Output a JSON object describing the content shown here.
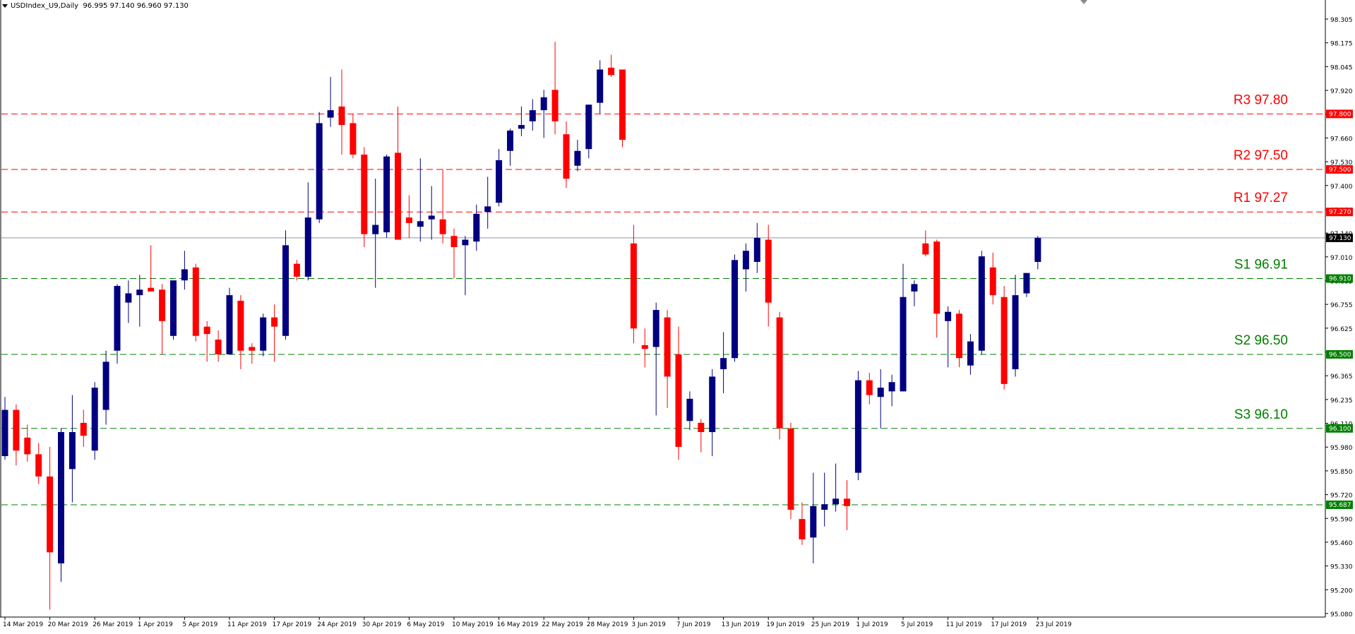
{
  "window": {
    "symbol": "USDIndex_U9,Daily",
    "ohlc": "96.995 97.140 96.960 97.130"
  },
  "colors": {
    "bull": "#000080",
    "bear": "#ff0000",
    "resistance": "#ff0000",
    "support": "#008000",
    "current_line": "#8899aa",
    "axis": "#000000"
  },
  "chart_data": {
    "type": "candlestick",
    "ylim": [
      95.08,
      98.37
    ],
    "y_ticks": [
      "98.305",
      "98.175",
      "98.045",
      "97.920",
      "97.790",
      "97.660",
      "97.530",
      "97.400",
      "97.270",
      "97.140",
      "97.010",
      "96.885",
      "96.755",
      "96.625",
      "96.495",
      "96.365",
      "96.235",
      "96.110",
      "95.980",
      "95.850",
      "95.720",
      "95.590",
      "95.460",
      "95.330",
      "95.200",
      "95.080"
    ],
    "x_labels": [
      {
        "i": 0,
        "t": "14 Mar 2019"
      },
      {
        "i": 4,
        "t": "20 Mar 2019"
      },
      {
        "i": 8,
        "t": "26 Mar 2019"
      },
      {
        "i": 12,
        "t": "1 Apr 2019"
      },
      {
        "i": 16,
        "t": "5 Apr 2019"
      },
      {
        "i": 20,
        "t": "11 Apr 2019"
      },
      {
        "i": 24,
        "t": "17 Apr 2019"
      },
      {
        "i": 28,
        "t": "24 Apr 2019"
      },
      {
        "i": 32,
        "t": "30 Apr 2019"
      },
      {
        "i": 36,
        "t": "6 May 2019"
      },
      {
        "i": 40,
        "t": "10 May 2019"
      },
      {
        "i": 44,
        "t": "16 May 2019"
      },
      {
        "i": 48,
        "t": "22 May 2019"
      },
      {
        "i": 52,
        "t": "28 May 2019"
      },
      {
        "i": 56,
        "t": "3 Jun 2019"
      },
      {
        "i": 60,
        "t": "7 Jun 2019"
      },
      {
        "i": 64,
        "t": "13 Jun 2019"
      },
      {
        "i": 68,
        "t": "19 Jun 2019"
      },
      {
        "i": 72,
        "t": "25 Jun 2019"
      },
      {
        "i": 76,
        "t": "1 Jul 2019"
      },
      {
        "i": 80,
        "t": "5 Jul 2019"
      },
      {
        "i": 84,
        "t": "11 Jul 2019"
      },
      {
        "i": 88,
        "t": "17 Jul 2019"
      },
      {
        "i": 92,
        "t": "23 Jul 2019"
      }
    ],
    "levels": [
      {
        "name": "R3",
        "label": "R3 97.80",
        "value": 97.8,
        "tag": "97.800",
        "kind": "resistance"
      },
      {
        "name": "R2",
        "label": "R2 97.50",
        "value": 97.5,
        "tag": "97.500",
        "kind": "resistance"
      },
      {
        "name": "R1",
        "label": "R1 97.27",
        "value": 97.27,
        "tag": "97.270",
        "kind": "resistance"
      },
      {
        "name": "S1",
        "label": "S1 96.91",
        "value": 96.91,
        "tag": "96.910",
        "kind": "support"
      },
      {
        "name": "S2",
        "label": "S2 96.50",
        "value": 96.5,
        "tag": "96.500",
        "kind": "support"
      },
      {
        "name": "S3",
        "label": "S3 96.10",
        "value": 96.1,
        "tag": "96.100",
        "kind": "support"
      },
      {
        "name": "",
        "label": "",
        "value": 95.687,
        "tag": "95.687",
        "kind": "support"
      }
    ],
    "current": {
      "value": 97.13,
      "tag": "97.130"
    },
    "candles": [
      {
        "o": 95.95,
        "h": 96.27,
        "l": 95.93,
        "c": 96.2
      },
      {
        "o": 96.2,
        "h": 96.23,
        "l": 95.9,
        "c": 95.98
      },
      {
        "o": 96.05,
        "h": 96.12,
        "l": 95.92,
        "c": 95.96
      },
      {
        "o": 95.96,
        "h": 96.02,
        "l": 95.8,
        "c": 95.84
      },
      {
        "o": 95.84,
        "h": 96.0,
        "l": 95.12,
        "c": 95.43
      },
      {
        "o": 95.37,
        "h": 96.1,
        "l": 95.27,
        "c": 96.08
      },
      {
        "o": 95.88,
        "h": 96.28,
        "l": 95.7,
        "c": 96.08
      },
      {
        "o": 96.13,
        "h": 96.2,
        "l": 96.0,
        "c": 96.06
      },
      {
        "o": 95.98,
        "h": 96.35,
        "l": 95.93,
        "c": 96.32
      },
      {
        "o": 96.2,
        "h": 96.52,
        "l": 96.12,
        "c": 96.46
      },
      {
        "o": 96.52,
        "h": 96.88,
        "l": 96.45,
        "c": 96.87
      },
      {
        "o": 96.78,
        "h": 96.9,
        "l": 96.67,
        "c": 96.83
      },
      {
        "o": 96.82,
        "h": 96.93,
        "l": 96.65,
        "c": 96.85
      },
      {
        "o": 96.86,
        "h": 97.09,
        "l": 96.84,
        "c": 96.84
      },
      {
        "o": 96.85,
        "h": 96.88,
        "l": 96.5,
        "c": 96.68
      },
      {
        "o": 96.6,
        "h": 96.9,
        "l": 96.58,
        "c": 96.9
      },
      {
        "o": 96.9,
        "h": 97.06,
        "l": 96.85,
        "c": 96.96
      },
      {
        "o": 96.97,
        "h": 96.99,
        "l": 96.57,
        "c": 96.6
      },
      {
        "o": 96.65,
        "h": 96.68,
        "l": 96.46,
        "c": 96.61
      },
      {
        "o": 96.58,
        "h": 96.63,
        "l": 96.46,
        "c": 96.5
      },
      {
        "o": 96.5,
        "h": 96.86,
        "l": 96.5,
        "c": 96.82
      },
      {
        "o": 96.79,
        "h": 96.82,
        "l": 96.42,
        "c": 96.52
      },
      {
        "o": 96.54,
        "h": 96.56,
        "l": 96.45,
        "c": 96.52
      },
      {
        "o": 96.52,
        "h": 96.72,
        "l": 96.49,
        "c": 96.7
      },
      {
        "o": 96.7,
        "h": 96.77,
        "l": 96.46,
        "c": 96.65
      },
      {
        "o": 96.6,
        "h": 97.17,
        "l": 96.58,
        "c": 97.09
      },
      {
        "o": 96.99,
        "h": 97.01,
        "l": 96.9,
        "c": 96.92
      },
      {
        "o": 96.92,
        "h": 97.43,
        "l": 96.9,
        "c": 97.24
      },
      {
        "o": 97.23,
        "h": 97.81,
        "l": 97.21,
        "c": 97.75
      },
      {
        "o": 97.78,
        "h": 98.0,
        "l": 97.73,
        "c": 97.82
      },
      {
        "o": 97.84,
        "h": 98.04,
        "l": 97.58,
        "c": 97.74
      },
      {
        "o": 97.75,
        "h": 97.8,
        "l": 97.56,
        "c": 97.58
      },
      {
        "o": 97.58,
        "h": 97.62,
        "l": 97.08,
        "c": 97.15
      },
      {
        "o": 97.15,
        "h": 97.45,
        "l": 96.86,
        "c": 97.2
      },
      {
        "o": 97.16,
        "h": 97.58,
        "l": 97.13,
        "c": 97.57
      },
      {
        "o": 97.59,
        "h": 97.84,
        "l": 97.12,
        "c": 97.12
      },
      {
        "o": 97.24,
        "h": 97.36,
        "l": 97.13,
        "c": 97.21
      },
      {
        "o": 97.19,
        "h": 97.56,
        "l": 97.11,
        "c": 97.22
      },
      {
        "o": 97.23,
        "h": 97.41,
        "l": 97.12,
        "c": 97.25
      },
      {
        "o": 97.23,
        "h": 97.5,
        "l": 97.1,
        "c": 97.15
      },
      {
        "o": 97.14,
        "h": 97.18,
        "l": 96.91,
        "c": 97.08
      },
      {
        "o": 97.09,
        "h": 97.14,
        "l": 96.82,
        "c": 97.12
      },
      {
        "o": 97.11,
        "h": 97.31,
        "l": 97.06,
        "c": 97.26
      },
      {
        "o": 97.27,
        "h": 97.46,
        "l": 97.18,
        "c": 97.3
      },
      {
        "o": 97.32,
        "h": 97.61,
        "l": 97.3,
        "c": 97.55
      },
      {
        "o": 97.6,
        "h": 97.72,
        "l": 97.52,
        "c": 97.71
      },
      {
        "o": 97.72,
        "h": 97.84,
        "l": 97.68,
        "c": 97.74
      },
      {
        "o": 97.76,
        "h": 97.88,
        "l": 97.71,
        "c": 97.82
      },
      {
        "o": 97.82,
        "h": 97.93,
        "l": 97.67,
        "c": 97.89
      },
      {
        "o": 97.93,
        "h": 98.19,
        "l": 97.69,
        "c": 97.76
      },
      {
        "o": 97.69,
        "h": 97.76,
        "l": 97.4,
        "c": 97.45
      },
      {
        "o": 97.52,
        "h": 97.66,
        "l": 97.49,
        "c": 97.6
      },
      {
        "o": 97.61,
        "h": 97.85,
        "l": 97.56,
        "c": 97.85
      },
      {
        "o": 97.86,
        "h": 98.09,
        "l": 97.8,
        "c": 98.04
      },
      {
        "o": 98.05,
        "h": 98.12,
        "l": 98.0,
        "c": 98.01
      },
      {
        "o": 98.04,
        "h": 98.04,
        "l": 97.62,
        "c": 97.66
      },
      {
        "o": 97.1,
        "h": 97.2,
        "l": 96.56,
        "c": 96.64
      },
      {
        "o": 96.55,
        "h": 96.64,
        "l": 96.43,
        "c": 96.53
      },
      {
        "o": 96.54,
        "h": 96.78,
        "l": 96.17,
        "c": 96.74
      },
      {
        "o": 96.7,
        "h": 96.74,
        "l": 96.21,
        "c": 96.38
      },
      {
        "o": 96.5,
        "h": 96.65,
        "l": 95.93,
        "c": 96.0
      },
      {
        "o": 96.14,
        "h": 96.3,
        "l": 96.09,
        "c": 96.26
      },
      {
        "o": 96.13,
        "h": 96.15,
        "l": 95.97,
        "c": 96.08
      },
      {
        "o": 96.08,
        "h": 96.42,
        "l": 95.95,
        "c": 96.38
      },
      {
        "o": 96.42,
        "h": 96.62,
        "l": 96.29,
        "c": 96.48
      },
      {
        "o": 96.48,
        "h": 97.04,
        "l": 96.46,
        "c": 97.01
      },
      {
        "o": 96.96,
        "h": 97.1,
        "l": 96.84,
        "c": 97.06
      },
      {
        "o": 97.0,
        "h": 97.21,
        "l": 96.94,
        "c": 97.13
      },
      {
        "o": 97.12,
        "h": 97.2,
        "l": 96.65,
        "c": 96.78
      },
      {
        "o": 96.7,
        "h": 96.73,
        "l": 96.04,
        "c": 96.1
      },
      {
        "o": 96.1,
        "h": 96.13,
        "l": 95.61,
        "c": 95.66
      },
      {
        "o": 95.61,
        "h": 95.7,
        "l": 95.47,
        "c": 95.5
      },
      {
        "o": 95.51,
        "h": 95.86,
        "l": 95.37,
        "c": 95.68
      },
      {
        "o": 95.66,
        "h": 95.86,
        "l": 95.57,
        "c": 95.69
      },
      {
        "o": 95.69,
        "h": 95.91,
        "l": 95.65,
        "c": 95.72
      },
      {
        "o": 95.72,
        "h": 95.82,
        "l": 95.55,
        "c": 95.68
      },
      {
        "o": 95.86,
        "h": 96.41,
        "l": 95.82,
        "c": 96.36
      },
      {
        "o": 96.36,
        "h": 96.4,
        "l": 96.23,
        "c": 96.28
      },
      {
        "o": 96.27,
        "h": 96.42,
        "l": 96.1,
        "c": 96.32
      },
      {
        "o": 96.3,
        "h": 96.39,
        "l": 96.22,
        "c": 96.35
      },
      {
        "o": 96.3,
        "h": 96.99,
        "l": 96.3,
        "c": 96.81
      },
      {
        "o": 96.84,
        "h": 96.9,
        "l": 96.76,
        "c": 96.88
      },
      {
        "o": 97.1,
        "h": 97.17,
        "l": 97.03,
        "c": 97.04
      },
      {
        "o": 97.11,
        "h": 97.12,
        "l": 96.59,
        "c": 96.72
      },
      {
        "o": 96.68,
        "h": 96.76,
        "l": 96.43,
        "c": 96.73
      },
      {
        "o": 96.72,
        "h": 96.74,
        "l": 96.43,
        "c": 96.48
      },
      {
        "o": 96.44,
        "h": 96.61,
        "l": 96.39,
        "c": 96.57
      },
      {
        "o": 96.52,
        "h": 97.06,
        "l": 96.5,
        "c": 97.03
      },
      {
        "o": 96.97,
        "h": 97.05,
        "l": 96.77,
        "c": 96.82
      },
      {
        "o": 96.81,
        "h": 96.87,
        "l": 96.31,
        "c": 96.34
      },
      {
        "o": 96.42,
        "h": 96.93,
        "l": 96.38,
        "c": 96.82
      },
      {
        "o": 96.83,
        "h": 96.94,
        "l": 96.81,
        "c": 96.94
      },
      {
        "o": 97.0,
        "h": 97.14,
        "l": 96.96,
        "c": 97.13
      }
    ]
  }
}
